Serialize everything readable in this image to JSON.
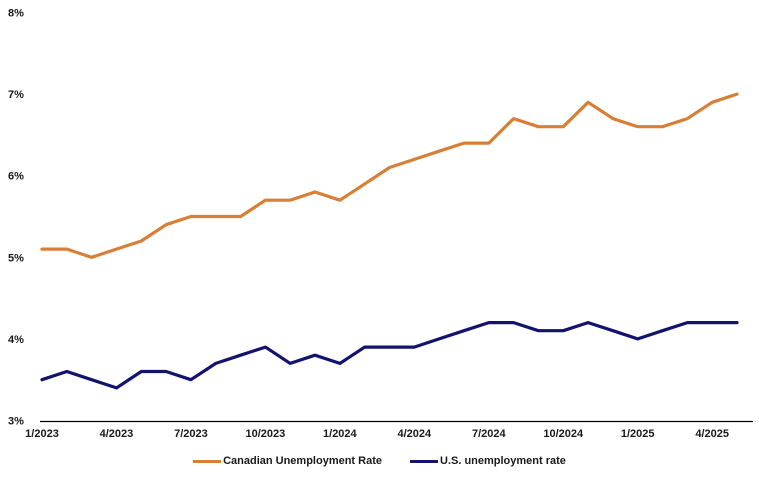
{
  "chart_data": {
    "type": "line",
    "title": "",
    "xlabel": "",
    "ylabel": "",
    "grid": false,
    "legend_position": "bottom",
    "ylim": [
      3,
      8
    ],
    "y_tick_labels": [
      "3%",
      "4%",
      "5%",
      "6%",
      "7%",
      "8%"
    ],
    "x": [
      "1/2023",
      "2/2023",
      "3/2023",
      "4/2023",
      "5/2023",
      "6/2023",
      "7/2023",
      "8/2023",
      "9/2023",
      "10/2023",
      "11/2023",
      "12/2023",
      "1/2024",
      "2/2024",
      "3/2024",
      "4/2024",
      "5/2024",
      "6/2024",
      "7/2024",
      "8/2024",
      "9/2024",
      "10/2024",
      "11/2024",
      "12/2024",
      "1/2025",
      "2/2025",
      "3/2025",
      "4/2025",
      "5/2025"
    ],
    "x_tick_labels": [
      "1/2023",
      "4/2023",
      "7/2023",
      "10/2023",
      "1/2024",
      "4/2024",
      "7/2024",
      "10/2024",
      "1/2025",
      "4/2025"
    ],
    "x_tick_every": 3,
    "series": [
      {
        "name": "Canadian Unemployment Rate",
        "color": "#D97E35",
        "values": [
          5.1,
          5.1,
          5.0,
          5.1,
          5.2,
          5.4,
          5.5,
          5.5,
          5.5,
          5.7,
          5.7,
          5.8,
          5.7,
          5.9,
          6.1,
          6.2,
          6.3,
          6.4,
          6.4,
          6.7,
          6.6,
          6.6,
          6.9,
          6.7,
          6.6,
          6.6,
          6.7,
          6.9,
          7.0
        ]
      },
      {
        "name": "U.S. unemployment rate",
        "color": "#13126E",
        "values": [
          3.5,
          3.6,
          3.5,
          3.4,
          3.6,
          3.6,
          3.5,
          3.7,
          3.8,
          3.9,
          3.7,
          3.8,
          3.7,
          3.9,
          3.9,
          3.9,
          4.0,
          4.1,
          4.2,
          4.2,
          4.1,
          4.1,
          4.2,
          4.1,
          4.0,
          4.1,
          4.2,
          4.2,
          4.2
        ]
      }
    ],
    "axis_color": "#000000",
    "tick_label_color": "#1a1a1a"
  }
}
